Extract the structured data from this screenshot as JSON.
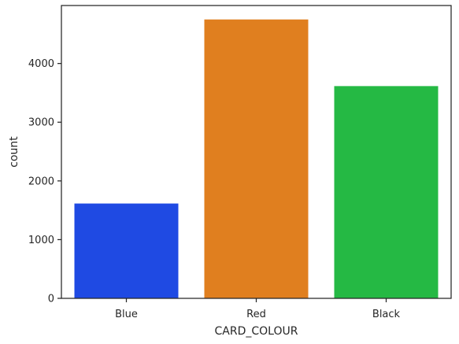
{
  "chart_data": {
    "type": "bar",
    "categories": [
      "Blue",
      "Red",
      "Black"
    ],
    "values": [
      1615,
      4750,
      3615
    ],
    "colors": [
      "#1f4ae3",
      "#e07f1f",
      "#25b944"
    ],
    "xlabel": "CARD_COLOUR",
    "ylabel": "count",
    "ylim": [
      0,
      4987.5
    ],
    "yticks": [
      0,
      1000,
      2000,
      3000,
      4000
    ],
    "ytick_labels": [
      "0",
      "1000",
      "2000",
      "3000",
      "4000"
    ],
    "grid": false,
    "style": "seaborn-ticks"
  }
}
